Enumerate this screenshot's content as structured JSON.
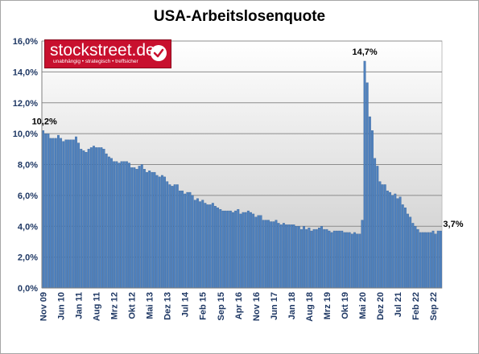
{
  "chart_data": {
    "type": "bar",
    "title": "USA-Arbeitslosenquote",
    "xlabel": "",
    "ylabel": "",
    "ylim": [
      0,
      16
    ],
    "yticks": [
      "0,0%",
      "2,0%",
      "4,0%",
      "6,0%",
      "8,0%",
      "10,0%",
      "12,0%",
      "14,0%",
      "16,0%"
    ],
    "grid": true,
    "legend": "none",
    "start_month": "Nov 09",
    "tick_labels": [
      "Nov 09",
      "Jun 10",
      "Jan 11",
      "Aug 11",
      "Mrz 12",
      "Okt 12",
      "Mai 13",
      "Dez 13",
      "Jul 14",
      "Feb 15",
      "Sep 15",
      "Apr 16",
      "Nov 16",
      "Jun 17",
      "Jan 18",
      "Aug 18",
      "Mrz 19",
      "Okt 19",
      "Mai 20",
      "Dez 20",
      "Jul 21",
      "Feb 22",
      "Sep 22"
    ],
    "values": [
      10.2,
      10.0,
      10.0,
      9.7,
      9.7,
      9.7,
      9.9,
      9.7,
      9.5,
      9.6,
      9.6,
      9.6,
      9.6,
      9.8,
      9.4,
      9.0,
      8.9,
      8.8,
      9.0,
      9.1,
      9.2,
      9.1,
      9.1,
      9.1,
      9.0,
      8.7,
      8.5,
      8.4,
      8.2,
      8.2,
      8.1,
      8.2,
      8.2,
      8.2,
      8.1,
      7.8,
      7.8,
      7.7,
      7.9,
      8.0,
      7.7,
      7.5,
      7.6,
      7.5,
      7.5,
      7.3,
      7.2,
      7.3,
      7.2,
      6.9,
      6.7,
      6.6,
      6.7,
      6.7,
      6.3,
      6.3,
      6.1,
      6.2,
      6.2,
      6.0,
      5.7,
      5.8,
      5.6,
      5.7,
      5.5,
      5.4,
      5.4,
      5.5,
      5.3,
      5.2,
      5.1,
      5.0,
      5.0,
      5.0,
      5.0,
      4.9,
      5.0,
      5.1,
      4.8,
      4.9,
      4.9,
      5.0,
      4.9,
      4.8,
      4.6,
      4.7,
      4.7,
      4.4,
      4.4,
      4.4,
      4.3,
      4.3,
      4.4,
      4.2,
      4.1,
      4.2,
      4.1,
      4.1,
      4.1,
      4.1,
      4.0,
      4.0,
      3.8,
      4.0,
      3.8,
      3.9,
      3.7,
      3.8,
      3.8,
      3.9,
      4.0,
      3.8,
      3.8,
      3.7,
      3.6,
      3.7,
      3.7,
      3.7,
      3.7,
      3.6,
      3.6,
      3.6,
      3.5,
      3.6,
      3.5,
      3.5,
      4.4,
      14.7,
      13.3,
      11.1,
      10.2,
      8.4,
      7.9,
      6.9,
      6.7,
      6.7,
      6.3,
      6.2,
      6.0,
      6.1,
      5.8,
      5.9,
      5.4,
      5.2,
      4.8,
      4.6,
      4.2,
      4.0,
      3.8,
      3.6,
      3.6,
      3.6,
      3.6,
      3.6,
      3.7,
      3.5,
      3.7,
      3.7
    ],
    "annotations": [
      {
        "label": "10,2%",
        "point": "first"
      },
      {
        "label": "14,7%",
        "point": "max"
      },
      {
        "label": "3,7%",
        "point": "last"
      }
    ],
    "bar_color": "#4f81bd",
    "bar_edge_color": "#2e5b93"
  },
  "logo": {
    "text": "stockstreet.de",
    "tagline": "unabhängig • strategisch • treffsicher",
    "color": "#c8102e"
  }
}
